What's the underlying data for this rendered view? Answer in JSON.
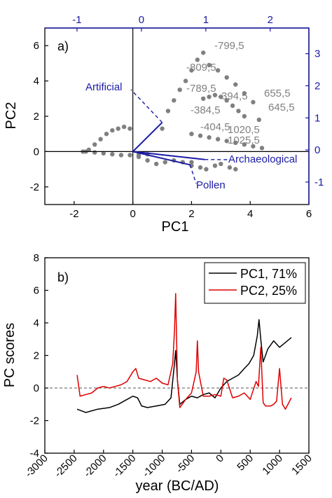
{
  "chart_data": [
    {
      "panel": "a)",
      "type": "scatter",
      "xlabel": "PC1",
      "ylabel": "PC2",
      "xlim": [
        -3,
        6
      ],
      "ylim": [
        -3,
        7
      ],
      "x_ticks": [
        -2,
        0,
        2,
        4,
        6
      ],
      "y_ticks": [
        -2,
        0,
        2,
        4,
        6
      ],
      "top_axis": {
        "lim": [
          -1.5,
          2.6
        ],
        "ticks": [
          -1,
          0,
          1,
          2
        ],
        "color": "#1a1aa6"
      },
      "right_axis": {
        "lim": [
          -1.7,
          3.8
        ],
        "ticks": [
          -1,
          0,
          1,
          2,
          3
        ],
        "color": "#1a1aa6"
      },
      "colors": {
        "points": "#808080",
        "loadings": "#1a1aa6",
        "axes": "#1a1aa6"
      },
      "point_groups": [
        {
          "x": [
            -1.7,
            -1.5,
            -1.3,
            -1.1,
            -0.9,
            -0.7,
            -0.5,
            -0.3,
            -0.1
          ],
          "y": [
            0,
            0.1,
            0.4,
            0.7,
            1.0,
            1.2,
            1.3,
            1.4,
            1.3
          ]
        },
        {
          "x": [
            -1.6,
            -1.3,
            -1.0,
            -0.7,
            -0.4,
            -0.1,
            0.2,
            0.5
          ],
          "y": [
            0,
            -0.05,
            -0.1,
            -0.15,
            -0.2,
            -0.2,
            -0.2,
            -0.15
          ]
        },
        {
          "x": [
            0.2,
            0.5,
            0.8,
            1.1,
            1.4,
            1.7,
            2.0
          ],
          "y": [
            -0.3,
            -0.5,
            -0.7,
            -0.6,
            -0.5,
            -0.6,
            -0.8
          ]
        },
        {
          "x": [
            2.0,
            2.3,
            2.5,
            2.8,
            3.0,
            3.3,
            3.5
          ],
          "y": [
            -0.6,
            -0.9,
            -1.0,
            -0.8,
            -0.7,
            -0.9,
            -1.0
          ]
        },
        {
          "x": [
            1.0,
            1.2,
            1.4,
            1.6,
            1.8,
            2.0,
            2.2,
            2.4
          ],
          "y": [
            1.3,
            2.3,
            2.9,
            3.5,
            4.0,
            4.6,
            5.2,
            5.6
          ]
        },
        {
          "x": [
            2.6,
            2.9,
            3.2,
            3.5,
            3.8,
            4.1,
            4.3
          ],
          "y": [
            4.9,
            4.6,
            4.2,
            3.8,
            3.3,
            2.8,
            1.8
          ]
        },
        {
          "x": [
            2.4,
            2.6,
            2.8,
            3.0,
            3.2,
            3.4,
            3.6,
            3.8
          ],
          "y": [
            3.0,
            3.1,
            3.2,
            3.1,
            2.9,
            2.6,
            2.3,
            2.0
          ]
        },
        {
          "x": [
            2.0,
            2.3,
            2.6,
            2.9,
            3.2,
            3.5,
            3.8,
            4.1,
            4.4
          ],
          "y": [
            1.0,
            0.9,
            0.8,
            0.7,
            0.6,
            0.5,
            0.4,
            0.3,
            0.2
          ]
        }
      ],
      "loadings": [
        {
          "name": "Artificial",
          "x": 1.0,
          "y": 1.65
        },
        {
          "name": "Archaeological",
          "x": 2.45,
          "y": -0.45
        },
        {
          "name": "Pollen",
          "x": 1.95,
          "y": -0.75
        }
      ],
      "point_labels": [
        "-799,5",
        "-809,5",
        "-789,5",
        "-394,5",
        "655,5",
        "-384,5",
        "645,5",
        "-404,5",
        "1020,5",
        "1025,5"
      ],
      "loading_labels": [
        "Artificial",
        "Archaeological",
        "Pollen"
      ]
    },
    {
      "panel": "b)",
      "type": "line",
      "xlabel": "year (BC/AD)",
      "ylabel": "PC scores",
      "xlim": [
        -3000,
        1500
      ],
      "ylim": [
        -4,
        8
      ],
      "x_ticks": [
        -3000,
        -2500,
        -2000,
        -1500,
        -1000,
        -500,
        0,
        500,
        1000,
        1500
      ],
      "y_ticks": [
        -4,
        -2,
        0,
        2,
        4,
        6,
        8
      ],
      "reference_line": {
        "y": 0,
        "style": "dashed"
      },
      "series": [
        {
          "name": "PC1, 71%",
          "color": "#000000",
          "x": [
            -2450,
            -2300,
            -2100,
            -1900,
            -1750,
            -1600,
            -1500,
            -1420,
            -1350,
            -1250,
            -1100,
            -950,
            -850,
            -790,
            -770,
            -740,
            -700,
            -600,
            -500,
            -400,
            -300,
            -200,
            -100,
            0,
            100,
            200,
            300,
            400,
            480,
            560,
            620,
            650,
            680,
            720,
            800,
            900,
            1000,
            1100,
            1200
          ],
          "y": [
            -1.3,
            -1.5,
            -1.3,
            -1.2,
            -1.0,
            -0.7,
            -0.5,
            -0.6,
            -1.1,
            -1.2,
            -1.1,
            -1.0,
            -0.6,
            1.5,
            2.3,
            0.5,
            -1.0,
            -0.7,
            -0.5,
            -0.6,
            -0.4,
            -0.3,
            -0.6,
            0.0,
            0.4,
            0.6,
            0.8,
            1.2,
            1.5,
            2.0,
            3.2,
            4.2,
            3.0,
            1.6,
            2.4,
            2.9,
            2.5,
            2.8,
            3.1
          ]
        },
        {
          "name": "PC2, 25%",
          "color": "#dd0000",
          "x": [
            -2450,
            -2400,
            -2300,
            -2200,
            -2100,
            -2000,
            -1900,
            -1800,
            -1700,
            -1600,
            -1500,
            -1450,
            -1400,
            -1300,
            -1200,
            -1100,
            -1000,
            -900,
            -820,
            -790,
            -770,
            -740,
            -700,
            -600,
            -500,
            -420,
            -400,
            -380,
            -300,
            -200,
            -100,
            0,
            50,
            100,
            200,
            300,
            400,
            500,
            600,
            640,
            680,
            720,
            760,
            850,
            900,
            950,
            1000,
            1050,
            1100,
            1200
          ],
          "y": [
            0.8,
            -0.5,
            -0.4,
            -0.3,
            0.0,
            0.1,
            0.0,
            0.1,
            0.2,
            0.4,
            1.0,
            1.2,
            0.6,
            0.5,
            0.4,
            0.6,
            0.3,
            0.2,
            1.5,
            3.5,
            5.8,
            0.5,
            -1.2,
            -0.7,
            -0.3,
            1.0,
            2.9,
            1.0,
            -0.5,
            -0.5,
            -0.4,
            -0.5,
            0.6,
            0.5,
            -0.6,
            -0.5,
            -0.3,
            -0.7,
            0.4,
            0.1,
            2.5,
            -0.9,
            -1.1,
            -1.1,
            -1.0,
            -0.8,
            1.2,
            -1.0,
            -1.3,
            -0.6
          ]
        }
      ]
    }
  ]
}
